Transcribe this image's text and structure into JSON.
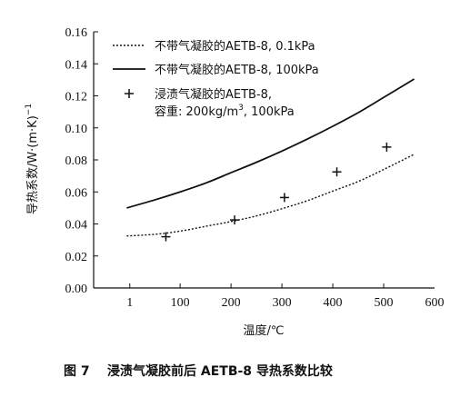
{
  "caption": {
    "figure_no": "图 7",
    "text": "浸渍气凝胶前后 AETB-8 导热系数比较"
  },
  "chart_data": {
    "type": "line",
    "xlabel": "温度/℃",
    "ylabel": "导热系数/W·(m·K)",
    "ylabel_sup": "−1",
    "xlim": [
      -70,
      600
    ],
    "ylim": [
      0,
      0.16
    ],
    "x_ticks": [
      1,
      100,
      200,
      300,
      400,
      500,
      600
    ],
    "y_ticks": [
      "0.00",
      "0.02",
      "0.04",
      "0.06",
      "0.08",
      "0.10",
      "0.12",
      "0.14",
      "0.16"
    ],
    "grid": false,
    "legend_position": "top-left",
    "series": [
      {
        "name": "不带气凝胶的AETB-8, 0.1kPa",
        "style": "dotted-line",
        "color": "#111111",
        "x": [
          -5,
          50,
          100,
          150,
          200,
          250,
          300,
          350,
          400,
          450,
          500,
          560
        ],
        "y": [
          0.0325,
          0.0335,
          0.0355,
          0.0385,
          0.0415,
          0.045,
          0.0495,
          0.0545,
          0.0605,
          0.0665,
          0.074,
          0.0835
        ]
      },
      {
        "name": "不带气凝胶的AETB-8, 100kPa",
        "style": "solid-line",
        "color": "#111111",
        "x": [
          -5,
          50,
          100,
          150,
          200,
          250,
          300,
          350,
          400,
          450,
          500,
          560
        ],
        "y": [
          0.05,
          0.055,
          0.06,
          0.0655,
          0.072,
          0.0785,
          0.0855,
          0.093,
          0.101,
          0.1095,
          0.119,
          0.1305
        ]
      },
      {
        "name_line1": "浸渍气凝胶的AETB-8,",
        "name_line2_prefix": "容重: 200kg/m",
        "name_line2_sup": "3",
        "name_line2_suffix": ", 100kPa",
        "style": "plus-markers",
        "color": "#111111",
        "x": [
          72,
          207,
          305,
          408,
          506
        ],
        "y": [
          0.032,
          0.0425,
          0.0565,
          0.0725,
          0.088
        ]
      }
    ]
  }
}
